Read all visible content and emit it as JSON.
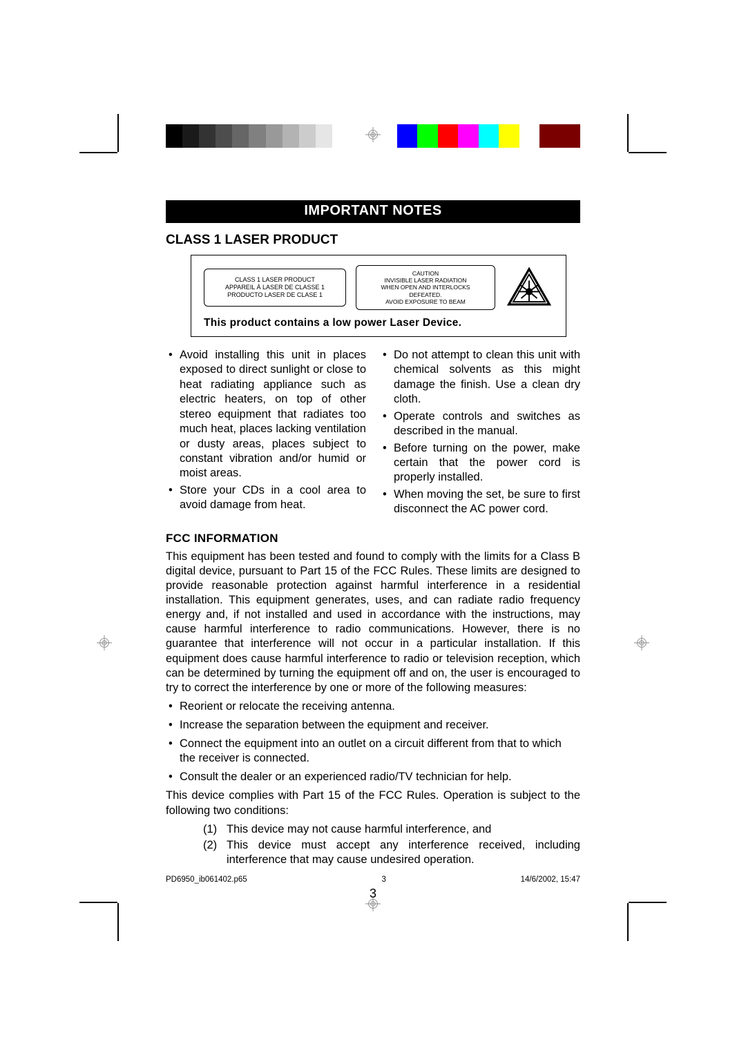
{
  "colorbar": {
    "grays": [
      "#000000",
      "#1a1a1a",
      "#333333",
      "#4d4d4d",
      "#666666",
      "#808080",
      "#999999",
      "#b3b3b3",
      "#cccccc",
      "#e6e6e6",
      "#ffffff"
    ],
    "colors": [
      "#0000ff",
      "#00ff00",
      "#ff0000",
      "#ff00ff",
      "#00ffff",
      "#ffff00",
      "#ffffff",
      "#7a0000",
      "#7a0000"
    ]
  },
  "banner": "IMPORTANT NOTES",
  "section1": {
    "title": "CLASS 1 LASER PRODUCT",
    "box1_lines": [
      "CLASS 1 LASER PRODUCT",
      "APPAREIL Á LASER DE CLASSE 1",
      "PRODUCTO LASER DE CLASE 1"
    ],
    "box2_lines": [
      "CAUTION",
      "INVISIBLE LASER RADIATION",
      "WHEN OPEN AND INTERLOCKS",
      "DEFEATED.",
      "AVOID EXPOSURE TO BEAM"
    ],
    "subtitle": "This product contains a low power Laser Device."
  },
  "notes_left": [
    "Avoid installing this unit in places exposed to direct sunlight or close to heat radiating appliance such as electric heaters, on top of other stereo equipment that radiates too much heat, places lacking ventilation or dusty areas, places subject to constant vibration and/or humid or moist areas.",
    "Store your CDs in a cool area to avoid damage from heat."
  ],
  "notes_right": [
    "Do not attempt to clean this unit with chemical solvents as this might damage the finish. Use a clean dry cloth.",
    "Operate controls and switches as described in the manual.",
    "Before turning on the power, make certain that the power cord is properly installed.",
    "When moving the set, be sure to first disconnect the AC power cord."
  ],
  "fcc": {
    "title": "FCC INFORMATION",
    "para1": "This equipment has been tested and found to comply with the limits for a Class B digital device, pursuant to Part 15 of the FCC Rules. These limits are designed to provide reasonable protection against harmful interference in a residential installation. This equipment generates, uses, and can radiate radio frequency energy and, if not installed and used in accordance with the instructions, may cause harmful interference to radio communications. However, there is no guarantee that interference will not occur in a particular installation. If this equipment does cause harmful interference to radio or television reception, which can be determined by turning the equipment off and on, the user is encouraged to try to correct the interference by one or more of the following measures:",
    "bullets": [
      "Reorient or relocate the receiving antenna.",
      "Increase the separation between the equipment and receiver.",
      "Connect the equipment into an outlet on a circuit different from that to which the receiver is connected.",
      "Consult the dealer or an experienced radio/TV technician for help."
    ],
    "para2": "This device complies with Part 15 of the FCC Rules. Operation is subject to the following two conditions:",
    "conds": [
      "This device may not cause harmful interference, and",
      "This device must accept any interference received, including interference that may cause undesired operation."
    ]
  },
  "page_number": "3",
  "footer": {
    "file": "PD6950_ib061402.p65",
    "page": "3",
    "date": "14/6/2002, 15:47"
  }
}
